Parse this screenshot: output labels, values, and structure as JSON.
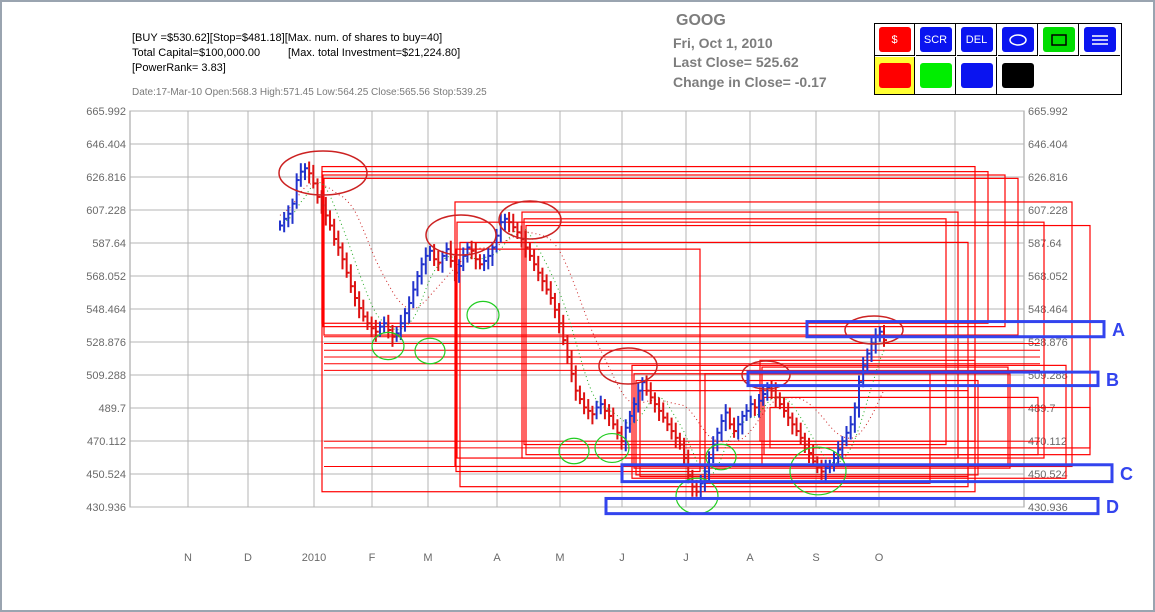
{
  "header": {
    "buy_line": "[BUY =$530.62][Stop=$481.18][Max. num. of shares to buy=40]",
    "capital_label": "Total Capital=$100,000.00",
    "investment_label": "[Max. total Investment=$21,224.80]",
    "powerrank": "[PowerRank= 3.83]",
    "bar_info": "Date:17-Mar-10 Open:568.3 High:571.45 Low:564.25 Close:565.56 Stop:539.25"
  },
  "quote": {
    "symbol": "GOOG",
    "date": "Fri, Oct 1, 2010",
    "last_close": "Last Close=  525.62",
    "change": "Change in Close=  -0.17"
  },
  "toolbar": {
    "buttons": [
      {
        "label": "$",
        "color": "#ff0000",
        "icon": "dollar-icon"
      },
      {
        "label": "SCR",
        "color": "#0a14f0",
        "icon": "screen-icon"
      },
      {
        "label": "DEL",
        "color": "#0a14f0",
        "icon": "delete-icon"
      },
      {
        "label": "",
        "color": "#0a14f0",
        "icon": "ellipse-icon"
      },
      {
        "label": "",
        "color": "#00dd00",
        "icon": "rectangle-icon"
      },
      {
        "label": "",
        "color": "#0a14f0",
        "icon": "lines-icon"
      }
    ],
    "swatches": [
      "#ff0000",
      "#00ee00",
      "#0a14f0",
      "#000000"
    ],
    "selected_swatch": 0
  },
  "chart_data": {
    "type": "candlestick",
    "y_ticks": [
      665.992,
      646.404,
      626.816,
      607.228,
      587.64,
      568.052,
      548.464,
      528.876,
      509.288,
      489.7,
      470.112,
      450.524,
      430.936
    ],
    "ylim": [
      430.936,
      665.992
    ],
    "x_labels": [
      "N",
      "D",
      "2010",
      "F",
      "M",
      "A",
      "M",
      "J",
      "J",
      "A",
      "S",
      "O"
    ],
    "grid": true,
    "annotations": [
      {
        "label": "A",
        "y_low": 532,
        "y_high": 541
      },
      {
        "label": "B",
        "y_low": 503,
        "y_high": 511
      },
      {
        "label": "C",
        "y_low": 446,
        "y_high": 456
      },
      {
        "label": "D",
        "y_low": 427,
        "y_high": 436
      }
    ],
    "colors": {
      "up": "#2233cc",
      "down": "#dd1111",
      "box": "#ff0000",
      "label": "#3344ee",
      "circle_green": "#22cc22",
      "circle_red": "#cc2222"
    },
    "series": [
      {
        "name": "closes",
        "values": [
          598,
          602,
          605,
          611,
          625,
          630,
          632,
          629,
          623,
          615,
          610,
          604,
          598,
          590,
          585,
          578,
          570,
          562,
          555,
          549,
          544,
          540,
          537,
          535,
          538,
          540,
          536,
          532,
          534,
          540,
          546,
          552,
          560,
          568,
          575,
          580,
          583,
          578,
          576,
          580,
          584,
          577,
          570,
          574,
          580,
          585,
          583,
          578,
          575,
          577,
          580,
          585,
          592,
          600,
          602,
          600,
          597,
          594,
          590,
          585,
          580,
          575,
          570,
          565,
          560,
          555,
          548,
          540,
          530,
          520,
          510,
          500,
          495,
          490,
          488,
          486,
          490,
          492,
          488,
          485,
          480,
          475,
          470,
          478,
          485,
          492,
          500,
          505,
          500,
          496,
          492,
          488,
          484,
          480,
          476,
          472,
          468,
          460,
          450,
          443,
          440,
          445,
          452,
          460,
          468,
          475,
          482,
          487,
          480,
          476,
          480,
          485,
          488,
          492,
          490,
          494,
          498,
          502,
          500,
          496,
          492,
          488,
          484,
          480,
          476,
          472,
          468,
          463,
          458,
          455,
          452,
          454,
          456,
          460,
          465,
          470,
          475,
          480,
          490,
          505,
          515,
          522,
          528,
          532,
          535,
          530
        ]
      }
    ]
  }
}
